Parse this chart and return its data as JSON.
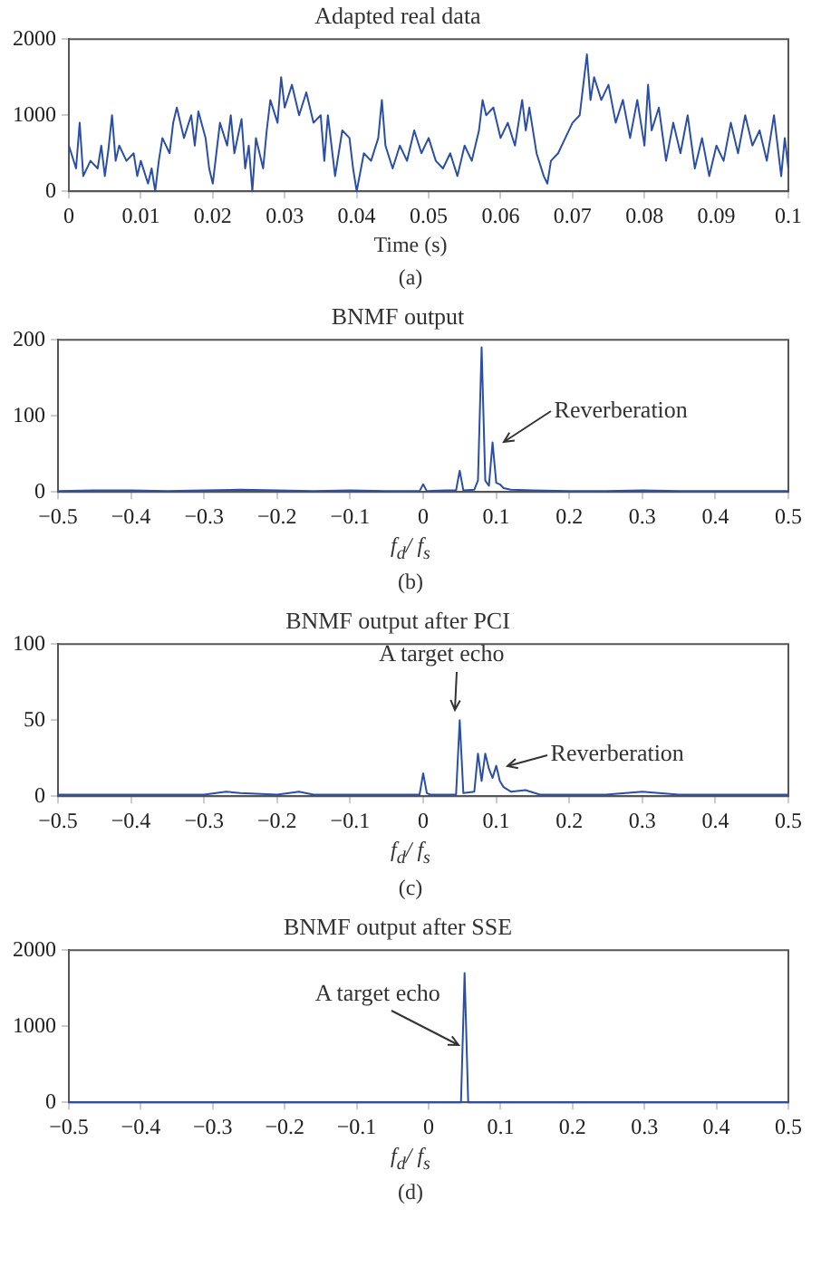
{
  "chart_data": [
    {
      "type": "line",
      "title": "Adapted real data",
      "xlabel": "Time (s)",
      "annotations": [
        "(a)"
      ],
      "grid": false,
      "legend": false,
      "marker": "none",
      "line_style": "solid",
      "xlim": [
        0,
        0.1
      ],
      "xticks": [
        0,
        0.01,
        0.02,
        0.03,
        0.04,
        0.05,
        0.06,
        0.07,
        0.08,
        0.09,
        0.1
      ],
      "ylim": [
        0,
        2000
      ],
      "yticks": [
        0,
        1000,
        2000
      ],
      "x": [
        0,
        0.001,
        0.0015,
        0.002,
        0.003,
        0.004,
        0.0045,
        0.005,
        0.0055,
        0.006,
        0.0065,
        0.007,
        0.008,
        0.009,
        0.0095,
        0.01,
        0.011,
        0.0115,
        0.012,
        0.0125,
        0.013,
        0.014,
        0.0145,
        0.015,
        0.016,
        0.017,
        0.0175,
        0.018,
        0.019,
        0.0195,
        0.02,
        0.0205,
        0.021,
        0.022,
        0.0225,
        0.023,
        0.024,
        0.0245,
        0.025,
        0.0255,
        0.026,
        0.027,
        0.0275,
        0.028,
        0.029,
        0.0295,
        0.03,
        0.031,
        0.032,
        0.033,
        0.034,
        0.035,
        0.0355,
        0.036,
        0.037,
        0.038,
        0.039,
        0.0395,
        0.04,
        0.041,
        0.042,
        0.043,
        0.0435,
        0.044,
        0.045,
        0.046,
        0.047,
        0.048,
        0.049,
        0.05,
        0.051,
        0.052,
        0.053,
        0.054,
        0.055,
        0.056,
        0.057,
        0.0575,
        0.058,
        0.059,
        0.06,
        0.061,
        0.062,
        0.063,
        0.0635,
        0.064,
        0.065,
        0.066,
        0.0665,
        0.067,
        0.068,
        0.069,
        0.07,
        0.071,
        0.0715,
        0.072,
        0.0725,
        0.073,
        0.074,
        0.075,
        0.076,
        0.077,
        0.078,
        0.079,
        0.08,
        0.0805,
        0.081,
        0.082,
        0.083,
        0.084,
        0.085,
        0.086,
        0.087,
        0.088,
        0.089,
        0.09,
        0.091,
        0.092,
        0.093,
        0.094,
        0.095,
        0.096,
        0.097,
        0.098,
        0.099,
        0.0995,
        0.1
      ],
      "series": [
        {
          "color": "#2b4fa6",
          "values": [
            600,
            300,
            900,
            200,
            400,
            300,
            600,
            200,
            550,
            1000,
            400,
            600,
            400,
            500,
            200,
            400,
            100,
            300,
            0,
            400,
            700,
            500,
            900,
            1100,
            700,
            1000,
            600,
            1050,
            700,
            300,
            100,
            500,
            900,
            600,
            1000,
            500,
            950,
            300,
            600,
            0,
            700,
            300,
            800,
            1200,
            900,
            1500,
            1100,
            1400,
            1000,
            1300,
            900,
            1000,
            400,
            1000,
            200,
            800,
            700,
            300,
            0,
            500,
            400,
            700,
            1200,
            600,
            300,
            600,
            400,
            800,
            500,
            700,
            400,
            300,
            500,
            200,
            600,
            400,
            800,
            1200,
            1000,
            1100,
            700,
            900,
            600,
            1200,
            800,
            1100,
            500,
            200,
            100,
            400,
            500,
            700,
            900,
            1000,
            1400,
            1800,
            1200,
            1500,
            1200,
            1400,
            900,
            1200,
            700,
            1200,
            600,
            1400,
            800,
            1100,
            400,
            900,
            500,
            1000,
            300,
            700,
            200,
            600,
            400,
            900,
            500,
            1000,
            600,
            800,
            400,
            1000,
            200,
            700,
            300
          ]
        }
      ]
    },
    {
      "type": "line",
      "title": "BNMF output",
      "xlabel": "f$_{d}$/ f$_{s}$",
      "annotations": [
        {
          "text": "Reverberation",
          "x": 0.095,
          "y": 65
        },
        "(b)"
      ],
      "grid": false,
      "legend": false,
      "marker": "none",
      "line_style": "solid",
      "xlim": [
        -0.5,
        0.5
      ],
      "xticks": [
        {
          "value": -0.5,
          "label": "−0.5"
        },
        {
          "value": -0.4,
          "label": "−0.4"
        },
        {
          "value": -0.3,
          "label": "−0.3"
        },
        {
          "value": -0.2,
          "label": "−0.2"
        },
        {
          "value": -0.1,
          "label": "−0.1"
        },
        0,
        0.1,
        0.2,
        0.3,
        0.4,
        0.5
      ],
      "ylim": [
        0,
        200
      ],
      "yticks": [
        0,
        100,
        200
      ],
      "x": [
        -0.5,
        -0.45,
        -0.4,
        -0.35,
        -0.3,
        -0.25,
        -0.2,
        -0.15,
        -0.1,
        -0.05,
        -0.005,
        0,
        0.005,
        0.03,
        0.045,
        0.05,
        0.055,
        0.07,
        0.075,
        0.08,
        0.085,
        0.09,
        0.095,
        0.1,
        0.105,
        0.11,
        0.12,
        0.15,
        0.2,
        0.25,
        0.3,
        0.35,
        0.4,
        0.45,
        0.5
      ],
      "series": [
        {
          "color": "#2b4fa6",
          "values": [
            1,
            2,
            2,
            1,
            2,
            3,
            2,
            1,
            2,
            1,
            1,
            10,
            1,
            2,
            2,
            28,
            2,
            3,
            15,
            190,
            15,
            8,
            65,
            12,
            10,
            5,
            3,
            2,
            1,
            1,
            2,
            1,
            1,
            1,
            1
          ]
        }
      ]
    },
    {
      "type": "line",
      "title": "BNMF output after PCI",
      "xlabel": "f$_{d}$/ f$_{s}$",
      "annotations": [
        {
          "text": "A target echo",
          "x": 0.05,
          "y": 50
        },
        {
          "text": "Reverberation",
          "x": 0.1,
          "y": 20
        },
        "(c)"
      ],
      "grid": false,
      "legend": false,
      "marker": "none",
      "line_style": "solid",
      "xlim": [
        -0.5,
        0.5
      ],
      "xticks": [
        {
          "value": -0.5,
          "label": "−0.5"
        },
        {
          "value": -0.4,
          "label": "−0.4"
        },
        {
          "value": -0.3,
          "label": "−0.3"
        },
        {
          "value": -0.2,
          "label": "−0.2"
        },
        {
          "value": -0.1,
          "label": "−0.1"
        },
        0,
        0.1,
        0.2,
        0.3,
        0.4,
        0.5
      ],
      "ylim": [
        0,
        100
      ],
      "yticks": [
        0,
        50,
        100
      ],
      "x": [
        -0.5,
        -0.4,
        -0.3,
        -0.27,
        -0.25,
        -0.2,
        -0.17,
        -0.15,
        -0.1,
        -0.05,
        -0.005,
        0,
        0.005,
        0.01,
        0.045,
        0.05,
        0.055,
        0.07,
        0.075,
        0.08,
        0.085,
        0.09,
        0.095,
        0.1,
        0.105,
        0.11,
        0.12,
        0.14,
        0.16,
        0.2,
        0.25,
        0.3,
        0.35,
        0.4,
        0.45,
        0.5
      ],
      "series": [
        {
          "color": "#2b4fa6",
          "values": [
            1,
            1,
            1,
            3,
            2,
            1,
            3,
            1,
            1,
            1,
            1,
            15,
            2,
            1,
            1,
            50,
            2,
            3,
            28,
            10,
            28,
            18,
            12,
            20,
            10,
            6,
            3,
            4,
            1,
            1,
            1,
            3,
            1,
            1,
            1,
            1
          ]
        }
      ]
    },
    {
      "type": "line",
      "title": "BNMF output after SSE",
      "xlabel": "f$_{d}$/ f$_{s}$",
      "annotations": [
        {
          "text": "A target echo",
          "x": 0.05,
          "y": 1700
        },
        "(d)"
      ],
      "grid": false,
      "legend": false,
      "marker": "none",
      "line_style": "solid",
      "xlim": [
        -0.5,
        0.5
      ],
      "xticks": [
        {
          "value": -0.5,
          "label": "−0.5"
        },
        {
          "value": -0.4,
          "label": "−0.4"
        },
        {
          "value": -0.3,
          "label": "−0.3"
        },
        {
          "value": -0.2,
          "label": "−0.2"
        },
        {
          "value": -0.1,
          "label": "−0.1"
        },
        0,
        0.1,
        0.2,
        0.3,
        0.4,
        0.5
      ],
      "ylim": [
        0,
        2000
      ],
      "yticks": [
        0,
        1000,
        2000
      ],
      "x": [
        -0.5,
        0.045,
        0.05,
        0.055,
        0.5
      ],
      "series": [
        {
          "color": "#2b4fa6",
          "values": [
            0,
            0,
            1700,
            0,
            0
          ]
        }
      ]
    }
  ]
}
